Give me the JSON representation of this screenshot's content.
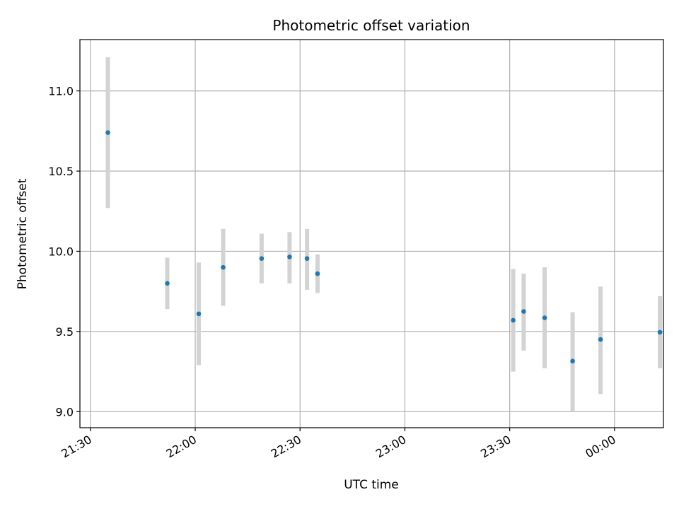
{
  "chart_data": {
    "type": "scatter",
    "title": "Photometric offset variation",
    "xlabel": "UTC time",
    "ylabel": "Photometric offset",
    "x_unit": "time",
    "xlim": [
      "21:27",
      "00:14"
    ],
    "ylim": [
      8.9,
      11.32
    ],
    "xticks": [
      "21:30",
      "22:00",
      "22:30",
      "23:00",
      "23:30",
      "00:00"
    ],
    "yticks": [
      "9.0",
      "9.5",
      "10.0",
      "10.5",
      "11.0"
    ],
    "grid": true,
    "colors": {
      "marker": "#1f77b4",
      "errorbar": "#d3d3d3",
      "grid": "#b0b0b0"
    },
    "series": [
      {
        "points": [
          {
            "x": "21:35",
            "y": 10.74,
            "ylow": 10.27,
            "yhigh": 11.21
          },
          {
            "x": "21:52",
            "y": 9.8,
            "ylow": 9.64,
            "yhigh": 9.96
          },
          {
            "x": "22:01",
            "y": 9.61,
            "ylow": 9.29,
            "yhigh": 9.93
          },
          {
            "x": "22:08",
            "y": 9.9,
            "ylow": 9.66,
            "yhigh": 10.14
          },
          {
            "x": "22:19",
            "y": 9.955,
            "ylow": 9.8,
            "yhigh": 10.11
          },
          {
            "x": "22:27",
            "y": 9.965,
            "ylow": 9.8,
            "yhigh": 10.12
          },
          {
            "x": "22:32",
            "y": 9.955,
            "ylow": 9.76,
            "yhigh": 10.14
          },
          {
            "x": "22:35",
            "y": 9.86,
            "ylow": 9.74,
            "yhigh": 9.98
          },
          {
            "x": "23:31",
            "y": 9.57,
            "ylow": 9.25,
            "yhigh": 9.89
          },
          {
            "x": "23:34",
            "y": 9.625,
            "ylow": 9.38,
            "yhigh": 9.86
          },
          {
            "x": "23:40",
            "y": 9.585,
            "ylow": 9.27,
            "yhigh": 9.9
          },
          {
            "x": "23:48",
            "y": 9.315,
            "ylow": 9.0,
            "yhigh": 9.62
          },
          {
            "x": "23:56",
            "y": 9.45,
            "ylow": 9.11,
            "yhigh": 9.78
          },
          {
            "x": "00:13",
            "y": 9.495,
            "ylow": 9.27,
            "yhigh": 9.72
          }
        ]
      }
    ]
  }
}
